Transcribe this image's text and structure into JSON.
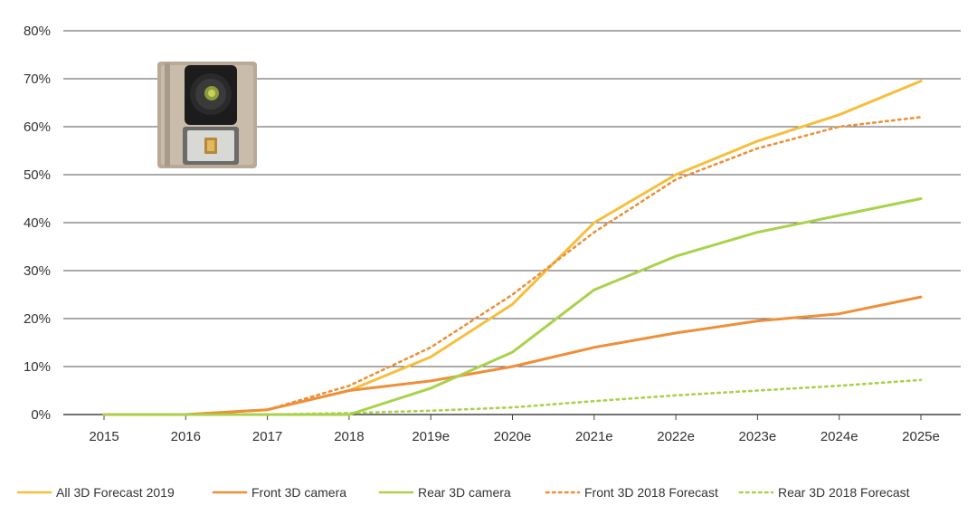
{
  "chart_data": {
    "type": "line",
    "title": "",
    "xlabel": "",
    "ylabel": "",
    "categories": [
      "2015",
      "2016",
      "2017",
      "2018",
      "2019e",
      "2020e",
      "2021e",
      "2022e",
      "2023e",
      "2024e",
      "2025e"
    ],
    "ylim": [
      0,
      80
    ],
    "yticks": [
      "0%",
      "10%",
      "20%",
      "30%",
      "40%",
      "50%",
      "60%",
      "70%",
      "80%"
    ],
    "grid": true,
    "legend_position": "bottom",
    "series": [
      {
        "name": "All 3D Forecast 2019",
        "color": "#F6BE3C",
        "style": "solid",
        "values": [
          0,
          0,
          1,
          5,
          12,
          23,
          40,
          50,
          57,
          62.5,
          69.5
        ]
      },
      {
        "name": "Front 3D camera",
        "color": "#EE8F3A",
        "style": "solid",
        "values": [
          0,
          0,
          1,
          5,
          7,
          10,
          14,
          17,
          19.5,
          21,
          24.5
        ]
      },
      {
        "name": "Rear 3D camera",
        "color": "#A9D24A",
        "style": "solid",
        "values": [
          0,
          0,
          0,
          0,
          5.5,
          13,
          26,
          33,
          38,
          41.5,
          45
        ]
      },
      {
        "name": "Front 3D 2018 Forecast",
        "color": "#EE8F3A",
        "style": "dotted",
        "values": [
          0,
          0,
          1,
          6,
          14,
          25,
          38,
          49,
          55.5,
          60,
          62
        ]
      },
      {
        "name": "Rear 3D 2018 Forecast",
        "color": "#A9D24A",
        "style": "dotted",
        "values": [
          0,
          0,
          0,
          0.3,
          0.8,
          1.5,
          2.8,
          4,
          5,
          6,
          7.2
        ]
      }
    ]
  },
  "image": {
    "icon": "3d-camera-module-icon"
  }
}
